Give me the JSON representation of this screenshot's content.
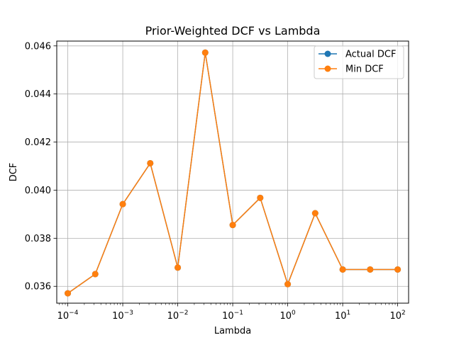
{
  "chart_data": {
    "type": "line",
    "title": "Prior-Weighted DCF vs Lambda",
    "xlabel": "Lambda",
    "ylabel": "DCF",
    "x_scale": "log",
    "xlim": [
      6.3e-05,
      158
    ],
    "ylim": [
      0.0353,
      0.0462
    ],
    "grid": true,
    "legend_position": "top-right",
    "x_ticks": [
      {
        "value": 0.0001,
        "base": "10",
        "exp": "−4"
      },
      {
        "value": 0.001,
        "base": "10",
        "exp": "−3"
      },
      {
        "value": 0.01,
        "base": "10",
        "exp": "−2"
      },
      {
        "value": 0.1,
        "base": "10",
        "exp": "−1"
      },
      {
        "value": 1,
        "base": "10",
        "exp": "0"
      },
      {
        "value": 10,
        "base": "10",
        "exp": "1"
      },
      {
        "value": 100,
        "base": "10",
        "exp": "2"
      }
    ],
    "y_ticks": [
      {
        "value": 0.036,
        "label": "0.036"
      },
      {
        "value": 0.038,
        "label": "0.038"
      },
      {
        "value": 0.04,
        "label": "0.040"
      },
      {
        "value": 0.042,
        "label": "0.042"
      },
      {
        "value": 0.044,
        "label": "0.044"
      },
      {
        "value": 0.046,
        "label": "0.046"
      }
    ],
    "x": [
      0.0001,
      0.000316,
      0.001,
      0.00316,
      0.01,
      0.0316,
      0.1,
      0.316,
      1,
      3.16,
      10,
      31.6,
      100
    ],
    "series": [
      {
        "name": "Actual DCF",
        "color": "#1f77b4",
        "values": [
          0.03571,
          0.03651,
          0.03942,
          0.04112,
          0.03678,
          0.04572,
          0.03855,
          0.03968,
          0.03609,
          0.03904,
          0.0367,
          0.0367,
          0.0367
        ]
      },
      {
        "name": "Min DCF",
        "color": "#ff7f0e",
        "values": [
          0.03571,
          0.03651,
          0.03942,
          0.04112,
          0.03678,
          0.04572,
          0.03855,
          0.03968,
          0.03609,
          0.03904,
          0.0367,
          0.0367,
          0.0367
        ]
      }
    ]
  }
}
